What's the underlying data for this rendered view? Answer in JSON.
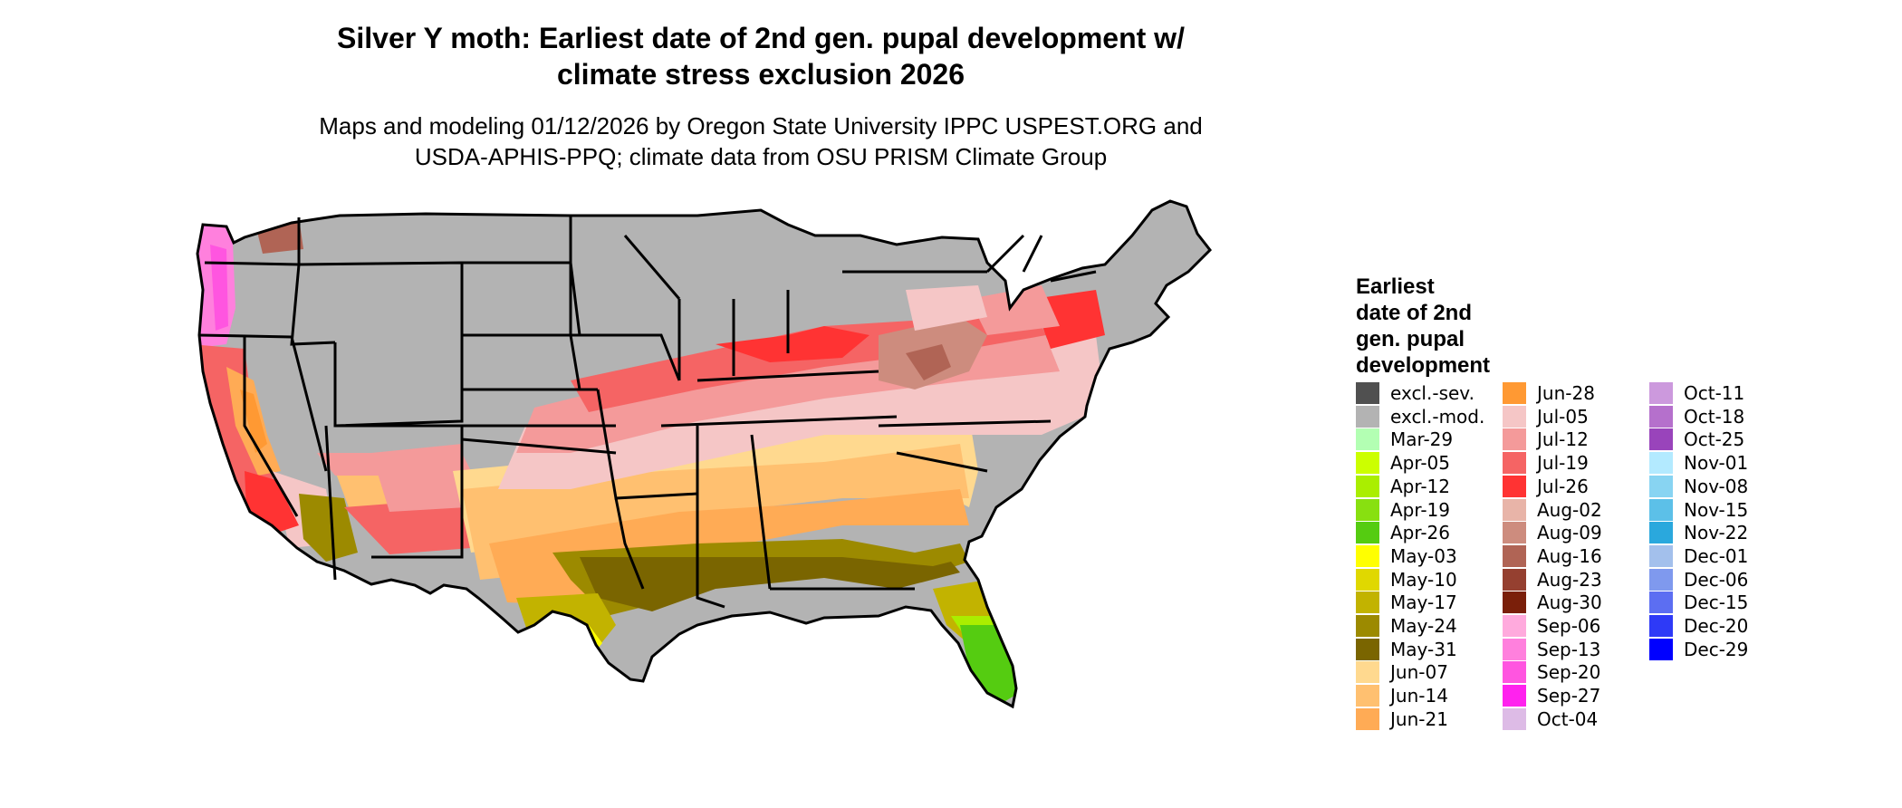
{
  "title": "Silver Y moth: Earliest date of 2nd gen. pupal development w/\nclimate stress exclusion 2026",
  "subtitle": "Maps and modeling 01/12/2026 by Oregon State University IPPC USPEST.ORG and\nUSDA-APHIS-PPQ; climate data from OSU PRISM Climate Group",
  "map": {
    "region": "Contiguous United States",
    "borders": "state boundaries",
    "colors": {
      "excluded_moderate": "#b3b3b3",
      "excluded_severe": "#505050",
      "borders": "#000000"
    }
  },
  "legend": {
    "title": "Earliest\ndate of 2nd\ngen. pupal\ndevelopment",
    "entries": [
      {
        "label": "excl.-sev.",
        "color": "#505050"
      },
      {
        "label": "excl.-mod.",
        "color": "#b3b3b3"
      },
      {
        "label": "Mar-29",
        "color": "#b3ffb3"
      },
      {
        "label": "Apr-05",
        "color": "#ccff00"
      },
      {
        "label": "Apr-12",
        "color": "#aaee00"
      },
      {
        "label": "Apr-19",
        "color": "#88e010"
      },
      {
        "label": "Apr-26",
        "color": "#55cc11"
      },
      {
        "label": "May-03",
        "color": "#ffff00"
      },
      {
        "label": "May-10",
        "color": "#e0d800"
      },
      {
        "label": "May-17",
        "color": "#c2b300"
      },
      {
        "label": "May-24",
        "color": "#9c8a00"
      },
      {
        "label": "May-31",
        "color": "#7a6500"
      },
      {
        "label": "Jun-07",
        "color": "#ffd98f"
      },
      {
        "label": "Jun-14",
        "color": "#ffc070"
      },
      {
        "label": "Jun-21",
        "color": "#ffab55"
      },
      {
        "label": "Jun-28",
        "color": "#ff9933"
      },
      {
        "label": "Jul-05",
        "color": "#f5c6c6"
      },
      {
        "label": "Jul-12",
        "color": "#f49a9a"
      },
      {
        "label": "Jul-19",
        "color": "#f56464"
      },
      {
        "label": "Jul-26",
        "color": "#ff3333"
      },
      {
        "label": "Aug-02",
        "color": "#e8b4a8"
      },
      {
        "label": "Aug-09",
        "color": "#cd8c7e"
      },
      {
        "label": "Aug-16",
        "color": "#b06455"
      },
      {
        "label": "Aug-23",
        "color": "#954030"
      },
      {
        "label": "Aug-30",
        "color": "#7a1f0a"
      },
      {
        "label": "Sep-06",
        "color": "#ffaadd"
      },
      {
        "label": "Sep-13",
        "color": "#ff80dd"
      },
      {
        "label": "Sep-20",
        "color": "#ff55e0"
      },
      {
        "label": "Sep-27",
        "color": "#ff22ee"
      },
      {
        "label": "Oct-04",
        "color": "#ddbbe6"
      },
      {
        "label": "Oct-11",
        "color": "#cc99dd"
      },
      {
        "label": "Oct-18",
        "color": "#b570cc"
      },
      {
        "label": "Oct-25",
        "color": "#9944bb"
      },
      {
        "label": "Nov-01",
        "color": "#b3eaff"
      },
      {
        "label": "Nov-08",
        "color": "#88d4f2"
      },
      {
        "label": "Nov-15",
        "color": "#5cc0e8"
      },
      {
        "label": "Nov-22",
        "color": "#2aa8dd"
      },
      {
        "label": "Dec-01",
        "color": "#a3c0ec"
      },
      {
        "label": "Dec-06",
        "color": "#7f99ee"
      },
      {
        "label": "Dec-15",
        "color": "#5c6ef2"
      },
      {
        "label": "Dec-20",
        "color": "#2e3af7"
      },
      {
        "label": "Dec-29",
        "color": "#0000ff"
      }
    ]
  }
}
